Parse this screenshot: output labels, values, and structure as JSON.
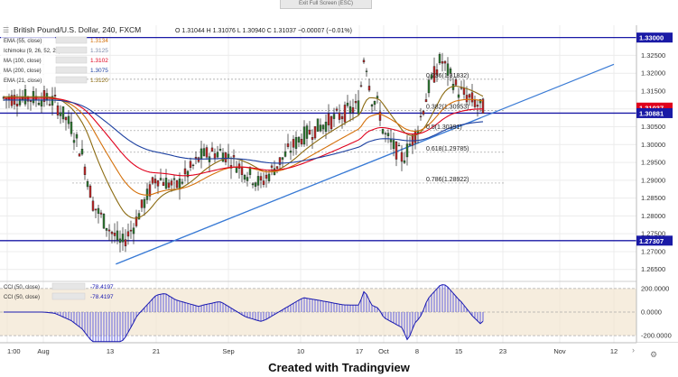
{
  "toolbar": {
    "exit_label": "Exit Full Screen (ESC)"
  },
  "header": {
    "symbol": "British Pound/U.S. Dollar, 240, FXCM",
    "ohlc": "O 1.31044  H 1.31076  L 1.30940  C 1.31037  −0.00007 (−0.01%)"
  },
  "indicator_legend": [
    {
      "label": "EMA (55, close)",
      "value": "1.3134",
      "color": "#d4700a"
    },
    {
      "label": "Ichimoku (9, 26, 52, 26)",
      "value": "1.3125",
      "color": "#7c8aa8"
    },
    {
      "label": "MA (100, close)",
      "value": "1.3102",
      "color": "#e0001c"
    },
    {
      "label": "MA (200, close)",
      "value": "1.3075",
      "color": "#1b3fa0"
    },
    {
      "label": "EMA (21, close)",
      "value": "1.3120",
      "color": "#8b6a10"
    }
  ],
  "cci_legend": [
    {
      "label": "CCI (50, close)",
      "value": "-78.4197"
    },
    {
      "label": "CCI (50, close)",
      "value": "-78.4197"
    }
  ],
  "fib_labels": [
    {
      "text": "0.236(1.31832)",
      "price": 1.31832
    },
    {
      "text": "0.382(1.30953)",
      "price": 1.30953
    },
    {
      "text": "0.5(1.30391)",
      "price": 1.30391
    },
    {
      "text": "0.618(1.29785)",
      "price": 1.29785
    },
    {
      "text": "0.786(1.28922)",
      "price": 1.28922
    }
  ],
  "price_markers": [
    {
      "text": "1.33000",
      "price": 1.33,
      "bg": "#1a1aa6",
      "fg": "#ffffff"
    },
    {
      "text": "1.31037",
      "price": 1.31037,
      "bg": "#e0001c",
      "fg": "#ffffff"
    },
    {
      "text": "1.30881",
      "price": 1.30881,
      "bg": "#1a1aa6",
      "fg": "#ffffff"
    },
    {
      "text": "1.27307",
      "price": 1.27307,
      "bg": "#1a1aa6",
      "fg": "#ffffff"
    }
  ],
  "cci_markers": [
    {
      "text": "200.0000",
      "value": 200
    },
    {
      "text": "0.0000",
      "value": 0
    },
    {
      "text": "-200.0000",
      "value": -200
    }
  ],
  "footer": "Created with Tradingview",
  "chart_data": {
    "type": "candlestick",
    "ylim": [
      1.262,
      1.3335
    ],
    "y_ticks": [
      "1.32500",
      "1.32000",
      "1.31500",
      "1.31000",
      "1.30500",
      "1.30000",
      "1.29500",
      "1.29000",
      "1.28500",
      "1.28000",
      "1.27500",
      "1.27000",
      "1.26500"
    ],
    "x_tick_labels": [
      "1:00",
      "Aug",
      "13",
      "21",
      "Sep",
      "10",
      "17",
      "Oct",
      "8",
      "15",
      "23",
      "Nov",
      "12"
    ],
    "horizontal_levels": [
      1.33,
      1.30881,
      1.27307
    ],
    "trendlines": [
      {
        "from": [
          "Aug 14",
          1.2665
        ],
        "to": [
          "Nov 14",
          1.3225
        ]
      },
      {
        "from": [
          "Aug 14",
          1.2665
        ],
        "to": [
          "Oct 19",
          1.3075
        ]
      }
    ],
    "series": [
      {
        "name": "close",
        "x": [
          "Aug 1",
          "Aug 3",
          "Aug 6",
          "Aug 8",
          "Aug 10",
          "Aug 13",
          "Aug 15",
          "Aug 17",
          "Aug 21",
          "Aug 24",
          "Aug 28",
          "Aug 31",
          "Sep 5",
          "Sep 10",
          "Sep 13",
          "Sep 17",
          "Sep 19",
          "Sep 20",
          "Sep 24",
          "Sep 28",
          "Oct 1",
          "Oct 5",
          "Oct 8",
          "Oct 10",
          "Oct 12",
          "Oct 15",
          "Oct 17",
          "Oct 19"
        ],
        "values": [
          1.313,
          1.312,
          1.305,
          1.297,
          1.283,
          1.276,
          1.272,
          1.277,
          1.291,
          1.288,
          1.297,
          1.298,
          1.289,
          1.302,
          1.306,
          1.311,
          1.322,
          1.326,
          1.313,
          1.311,
          1.303,
          1.296,
          1.304,
          1.316,
          1.324,
          1.315,
          1.313,
          1.3104
        ]
      }
    ],
    "cci": {
      "ylim": [
        -260,
        260
      ],
      "levels": [
        200,
        0,
        -200
      ],
      "last": -78.4197
    }
  }
}
